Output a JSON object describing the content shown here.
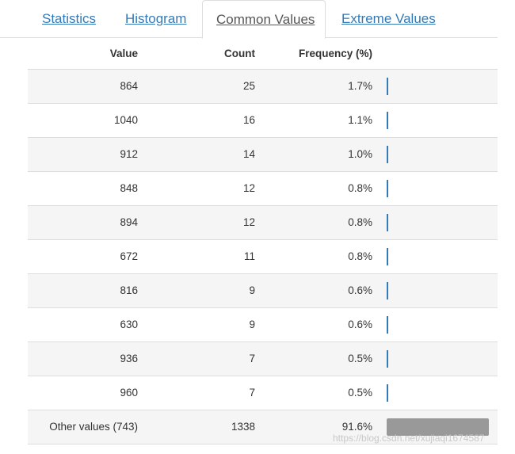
{
  "tabs": [
    {
      "label": "Statistics",
      "active": false
    },
    {
      "label": "Histogram",
      "active": false
    },
    {
      "label": "Common Values",
      "active": true
    },
    {
      "label": "Extreme Values",
      "active": false
    }
  ],
  "table": {
    "headers": {
      "value": "Value",
      "count": "Count",
      "frequency": "Frequency (%)"
    },
    "rows": [
      {
        "value": "864",
        "count": "25",
        "frequency": "1.7%",
        "bar_pct": 1.7
      },
      {
        "value": "1040",
        "count": "16",
        "frequency": "1.1%",
        "bar_pct": 1.1
      },
      {
        "value": "912",
        "count": "14",
        "frequency": "1.0%",
        "bar_pct": 1.0
      },
      {
        "value": "848",
        "count": "12",
        "frequency": "0.8%",
        "bar_pct": 0.8
      },
      {
        "value": "894",
        "count": "12",
        "frequency": "0.8%",
        "bar_pct": 0.8
      },
      {
        "value": "672",
        "count": "11",
        "frequency": "0.8%",
        "bar_pct": 0.8
      },
      {
        "value": "816",
        "count": "9",
        "frequency": "0.6%",
        "bar_pct": 0.6
      },
      {
        "value": "630",
        "count": "9",
        "frequency": "0.6%",
        "bar_pct": 0.6
      },
      {
        "value": "936",
        "count": "7",
        "frequency": "0.5%",
        "bar_pct": 0.5
      },
      {
        "value": "960",
        "count": "7",
        "frequency": "0.5%",
        "bar_pct": 0.5
      }
    ],
    "other": {
      "value": "Other values (743)",
      "count": "1338",
      "frequency": "91.6%",
      "bar_pct": 91.6
    }
  },
  "colors": {
    "link": "#337ab7",
    "bar": "#337ab7",
    "other_bar": "#999999",
    "stripe": "#f5f5f5",
    "border": "#dddddd"
  },
  "watermark": "https://blog.csdn.net/xujiaqi1674587"
}
